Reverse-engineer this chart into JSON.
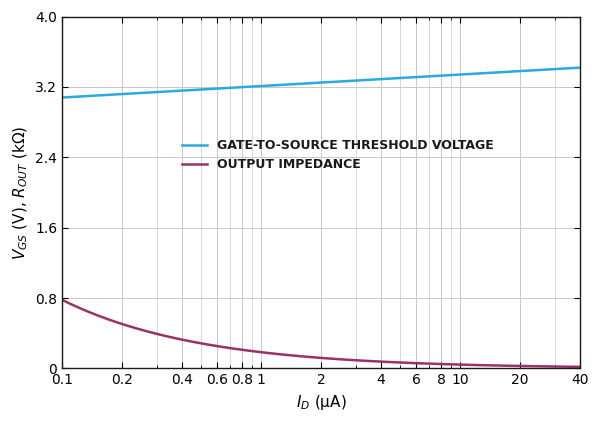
{
  "title": "",
  "xlabel": "I_D (μA)",
  "ylabel": "V_GS (V), R_OUT (kΩ)",
  "xlim": [
    0.1,
    40
  ],
  "ylim": [
    0,
    4.0
  ],
  "yticks": [
    0,
    0.8,
    1.6,
    2.4,
    3.2,
    4.0
  ],
  "xtick_positions": [
    0.1,
    0.2,
    0.4,
    0.6,
    0.8,
    1,
    2,
    4,
    6,
    8,
    10,
    20,
    40
  ],
  "xtick_labels": [
    "0.1",
    "0.2",
    "0.4",
    "0.6",
    "0.8",
    "1",
    "2",
    "4",
    "6",
    "8",
    "10",
    "20",
    "40"
  ],
  "vgs_color": "#29ABE2",
  "rout_color": "#993366",
  "legend_vgs": "GATE-TO-SOURCE THRESHOLD VOLTAGE",
  "legend_rout": "OUTPUT IMPEDANCE",
  "background_color": "#FFFFFF",
  "grid_color": "#C8C8C8",
  "vgs_a": 3.2107,
  "vgs_b": 0.1307,
  "rout_n": 0.625,
  "rout_start": 0.78,
  "rout_x_start": 0.1,
  "line_width": 1.8,
  "tick_fontsize": 10,
  "label_fontsize": 11,
  "legend_fontsize": 9
}
